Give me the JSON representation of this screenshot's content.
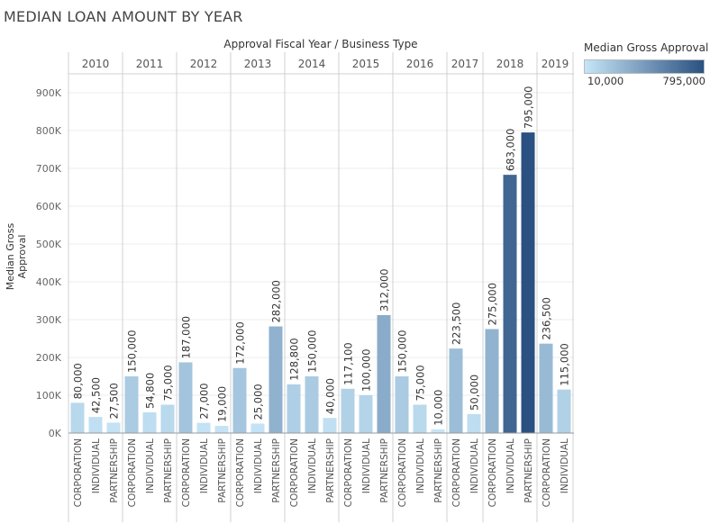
{
  "title": "MEDIAN LOAN AMOUNT BY YEAR",
  "subtitle": "Approval Fiscal Year  /  Business Type",
  "legend": {
    "title": "Median Gross Approval",
    "min_label": "10,000",
    "max_label": "795,000",
    "min_value": 10000,
    "max_value": 795000,
    "color_low": "#c6e5f7",
    "color_high": "#2a5181"
  },
  "chart_data": {
    "type": "bar",
    "title": "MEDIAN LOAN AMOUNT BY YEAR",
    "xlabel": "Approval Fiscal Year  /  Business Type",
    "ylabel": "Median Gross Approval",
    "ylim": [
      0,
      950000
    ],
    "yticks": [
      0,
      100000,
      200000,
      300000,
      400000,
      500000,
      600000,
      700000,
      800000,
      900000
    ],
    "ytick_labels": [
      "0K",
      "100K",
      "200K",
      "300K",
      "400K",
      "500K",
      "600K",
      "700K",
      "800K",
      "900K"
    ],
    "grid": true,
    "groups": [
      {
        "year": "2010",
        "bars": [
          {
            "category": "CORPORATION",
            "value": 80000,
            "label": "80,000"
          },
          {
            "category": "INDIVIDUAL",
            "value": 42500,
            "label": "42,500"
          },
          {
            "category": "PARTNERSHIP",
            "value": 27500,
            "label": "27,500"
          }
        ]
      },
      {
        "year": "2011",
        "bars": [
          {
            "category": "CORPORATION",
            "value": 150000,
            "label": "150,000"
          },
          {
            "category": "INDIVIDUAL",
            "value": 54800,
            "label": "54,800"
          },
          {
            "category": "PARTNERSHIP",
            "value": 75000,
            "label": "75,000"
          }
        ]
      },
      {
        "year": "2012",
        "bars": [
          {
            "category": "CORPORATION",
            "value": 187000,
            "label": "187,000"
          },
          {
            "category": "INDIVIDUAL",
            "value": 27000,
            "label": "27,000"
          },
          {
            "category": "PARTNERSHIP",
            "value": 19000,
            "label": "19,000"
          }
        ]
      },
      {
        "year": "2013",
        "bars": [
          {
            "category": "CORPORATION",
            "value": 172000,
            "label": "172,000"
          },
          {
            "category": "INDIVIDUAL",
            "value": 25000,
            "label": "25,000"
          },
          {
            "category": "PARTNERSHIP",
            "value": 282000,
            "label": "282,000"
          }
        ]
      },
      {
        "year": "2014",
        "bars": [
          {
            "category": "CORPORATION",
            "value": 128800,
            "label": "128,800"
          },
          {
            "category": "INDIVIDUAL",
            "value": 150000,
            "label": "150,000"
          },
          {
            "category": "PARTNERSHIP",
            "value": 40000,
            "label": "40,000"
          }
        ]
      },
      {
        "year": "2015",
        "bars": [
          {
            "category": "CORPORATION",
            "value": 117100,
            "label": "117,100"
          },
          {
            "category": "INDIVIDUAL",
            "value": 100000,
            "label": "100,000"
          },
          {
            "category": "PARTNERSHIP",
            "value": 312000,
            "label": "312,000"
          }
        ]
      },
      {
        "year": "2016",
        "bars": [
          {
            "category": "CORPORATION",
            "value": 150000,
            "label": "150,000"
          },
          {
            "category": "INDIVIDUAL",
            "value": 75000,
            "label": "75,000"
          },
          {
            "category": "PARTNERSHIP",
            "value": 10000,
            "label": "10,000"
          }
        ]
      },
      {
        "year": "2017",
        "bars": [
          {
            "category": "CORPORATION",
            "value": 223500,
            "label": "223,500"
          },
          {
            "category": "INDIVIDUAL",
            "value": 50000,
            "label": "50,000"
          }
        ]
      },
      {
        "year": "2018",
        "bars": [
          {
            "category": "CORPORATION",
            "value": 275000,
            "label": "275,000"
          },
          {
            "category": "INDIVIDUAL",
            "value": 683000,
            "label": "683,000"
          },
          {
            "category": "PARTNERSHIP",
            "value": 795000,
            "label": "795,000"
          }
        ]
      },
      {
        "year": "2019",
        "bars": [
          {
            "category": "CORPORATION",
            "value": 236500,
            "label": "236,500"
          },
          {
            "category": "INDIVIDUAL",
            "value": 115000,
            "label": "115,000"
          }
        ]
      }
    ]
  }
}
